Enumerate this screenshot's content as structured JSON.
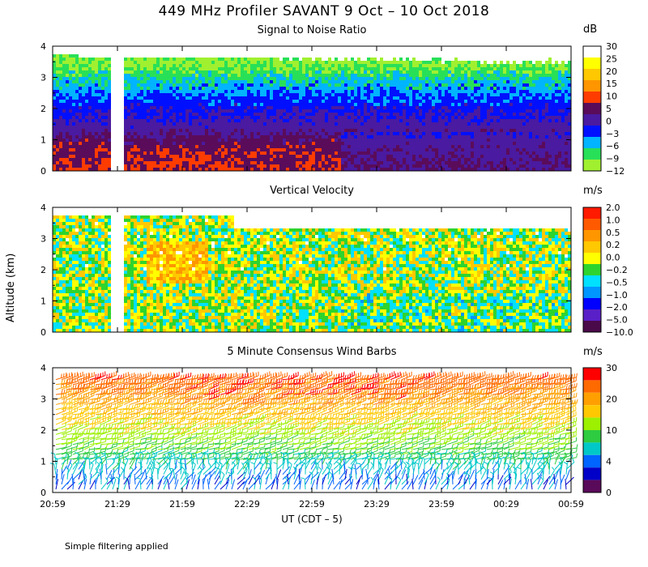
{
  "title": "449 MHz Profiler SAVANT  9 Oct – 10 Oct 2018",
  "y_axis_label": "Altitude (km)",
  "x_axis_label": "UT  (CDT – 5)",
  "footer": "Simple filtering applied",
  "x_ticks": [
    "20:59",
    "21:29",
    "21:59",
    "22:29",
    "22:59",
    "23:29",
    "23:59",
    "00:29",
    "00:59"
  ],
  "y_ticks": [
    "0",
    "1",
    "2",
    "3",
    "4"
  ],
  "chart_data": [
    {
      "type": "heatmap",
      "title": "Signal to Noise Ratio",
      "unit": "dB",
      "ylabel": "Altitude (km)",
      "ylim": [
        0,
        4
      ],
      "x_range": [
        "20:59",
        "00:59"
      ],
      "data_gap": [
        "21:25",
        "21:29"
      ],
      "colorbar_labels": [
        "30",
        "25",
        "20",
        "15",
        "10",
        "5",
        "0",
        "−3",
        "−6",
        "−9",
        "−12"
      ],
      "colorbar_colors": [
        "#ffffff",
        "#ffff00",
        "#ffc800",
        "#ff9600",
        "#ff3c00",
        "#5a0c5a",
        "#4a1aa0",
        "#0010ff",
        "#00b4ff",
        "#28e058",
        "#a0f030"
      ],
      "profile_by_altitude_km": [
        {
          "altitude_km": 0.2,
          "snr_db": 10
        },
        {
          "altitude_km": 1.0,
          "snr_db": 8
        },
        {
          "altitude_km": 1.5,
          "snr_db": 3
        },
        {
          "altitude_km": 2.0,
          "snr_db": 0
        },
        {
          "altitude_km": 2.5,
          "snr_db": -3
        },
        {
          "altitude_km": 3.0,
          "snr_db": -6
        },
        {
          "altitude_km": 3.5,
          "snr_db": -10
        }
      ]
    },
    {
      "type": "heatmap",
      "title": "Vertical Velocity",
      "unit": "m/s",
      "ylabel": "Altitude (km)",
      "ylim": [
        0,
        4
      ],
      "x_range": [
        "20:59",
        "00:59"
      ],
      "data_gap": [
        "21:25",
        "21:29"
      ],
      "colorbar_labels": [
        "2.0",
        "1.0",
        "0.5",
        "0.2",
        "0.0",
        "−0.2",
        "−0.5",
        "−1.0",
        "−2.0",
        "−5.0",
        "−10.0"
      ],
      "colorbar_colors": [
        "#ff1a00",
        "#ff5a00",
        "#ff9600",
        "#ffc800",
        "#ffff00",
        "#2ed42e",
        "#00e0ff",
        "#0096ff",
        "#0000ff",
        "#5a20c8",
        "#4a0a4a"
      ],
      "typical_range_m_s": [
        -0.5,
        0.5
      ]
    },
    {
      "type": "wind_barbs",
      "title": "5 Minute Consensus Wind Barbs",
      "unit": "m/s",
      "ylabel": "Altitude (km)",
      "ylim": [
        0,
        4
      ],
      "x_range": [
        "20:59",
        "00:59"
      ],
      "colorbar_labels": [
        "30",
        "20",
        "10",
        "4",
        "0"
      ],
      "colorbar_colors": [
        "#ff0000",
        "#ff6a00",
        "#ffa000",
        "#ffc800",
        "#9cf000",
        "#2ecc40",
        "#00c8c8",
        "#0064ff",
        "#0000c8",
        "#5a0a5a"
      ],
      "profile_by_altitude_km": [
        {
          "altitude_km": 0.3,
          "speed_m_s": 3
        },
        {
          "altitude_km": 1.0,
          "speed_m_s": 7
        },
        {
          "altitude_km": 1.8,
          "speed_m_s": 12
        },
        {
          "altitude_km": 2.5,
          "speed_m_s": 17
        },
        {
          "altitude_km": 3.2,
          "speed_m_s": 22
        },
        {
          "altitude_km": 3.7,
          "speed_m_s": 25
        }
      ]
    }
  ]
}
